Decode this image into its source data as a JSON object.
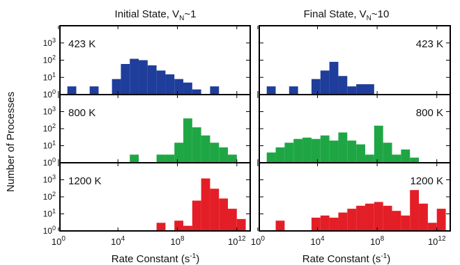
{
  "chart_data": {
    "type": "bar",
    "panel_type": "histogram",
    "x_scale": "log10",
    "y_scale": "log10",
    "xlim": [
      0.1,
      12.9
    ],
    "ylim": [
      1,
      10000
    ],
    "x_tick_exponents": [
      0,
      4,
      8,
      12
    ],
    "y_tick_exponents": [
      0,
      1,
      2,
      3
    ],
    "bin_width_decades": 0.6,
    "ylabel": "Number of Processes",
    "columns": [
      {
        "title_prefix": "Initial State, V",
        "title_sub": "N",
        "title_suffix": "~1",
        "xlabel": "Rate Constant (s",
        "xlabel_sup": "-1",
        "xlabel_end": ")"
      },
      {
        "title_prefix": "Final State, V",
        "title_sub": "N",
        "title_suffix": "~10",
        "xlabel": "Rate Constant (s",
        "xlabel_sup": "-1",
        "xlabel_end": ")"
      }
    ],
    "panels": [
      {
        "temperature": "423 K",
        "column": 0,
        "row": 0,
        "color": "#1f3d9a",
        "label_pos": "left",
        "bins": [
          [
            0.6,
            3
          ],
          [
            2.1,
            3
          ],
          [
            3.6,
            8
          ],
          [
            4.2,
            60
          ],
          [
            4.8,
            120
          ],
          [
            5.4,
            100
          ],
          [
            6.0,
            50
          ],
          [
            6.6,
            25
          ],
          [
            7.2,
            15
          ],
          [
            7.8,
            8
          ],
          [
            8.4,
            5
          ],
          [
            9.0,
            2
          ],
          [
            10.2,
            3
          ]
        ]
      },
      {
        "temperature": "423 K",
        "column": 1,
        "row": 0,
        "color": "#1f3d9a",
        "label_pos": "right",
        "bins": [
          [
            0.6,
            3
          ],
          [
            2.1,
            3
          ],
          [
            3.6,
            8
          ],
          [
            4.2,
            25
          ],
          [
            4.8,
            80
          ],
          [
            5.4,
            12
          ],
          [
            6.0,
            3
          ],
          [
            6.6,
            4
          ],
          [
            7.2,
            4
          ]
        ]
      },
      {
        "temperature": "800 K",
        "column": 0,
        "row": 1,
        "color": "#1fa644",
        "label_pos": "left",
        "bins": [
          [
            4.8,
            3
          ],
          [
            6.6,
            3
          ],
          [
            7.2,
            3
          ],
          [
            7.8,
            15
          ],
          [
            8.4,
            400
          ],
          [
            9.0,
            120
          ],
          [
            9.6,
            40
          ],
          [
            10.2,
            15
          ],
          [
            10.8,
            8
          ],
          [
            11.4,
            3
          ]
        ]
      },
      {
        "temperature": "800 K",
        "column": 1,
        "row": 1,
        "color": "#1fa644",
        "label_pos": "right",
        "bins": [
          [
            0.6,
            4
          ],
          [
            1.2,
            8
          ],
          [
            1.8,
            15
          ],
          [
            2.4,
            25
          ],
          [
            3.0,
            30
          ],
          [
            3.6,
            25
          ],
          [
            4.2,
            40
          ],
          [
            4.8,
            20
          ],
          [
            5.4,
            60
          ],
          [
            6.0,
            20
          ],
          [
            6.6,
            12
          ],
          [
            7.2,
            3
          ],
          [
            7.8,
            150
          ],
          [
            8.4,
            15
          ],
          [
            9.0,
            3
          ],
          [
            9.6,
            6
          ],
          [
            10.2,
            2
          ]
        ]
      },
      {
        "temperature": "1200 K",
        "column": 0,
        "row": 2,
        "color": "#e41e26",
        "label_pos": "left",
        "bins": [
          [
            6.6,
            3
          ],
          [
            7.8,
            4
          ],
          [
            8.4,
            2
          ],
          [
            9.0,
            60
          ],
          [
            9.6,
            1200
          ],
          [
            10.2,
            300
          ],
          [
            10.8,
            80
          ],
          [
            11.4,
            20
          ],
          [
            12.0,
            5
          ]
        ]
      },
      {
        "temperature": "1200 K",
        "column": 1,
        "row": 2,
        "color": "#e41e26",
        "label_pos": "right",
        "bins": [
          [
            1.2,
            4
          ],
          [
            3.6,
            6
          ],
          [
            4.2,
            8
          ],
          [
            4.8,
            6
          ],
          [
            5.4,
            12
          ],
          [
            6.0,
            20
          ],
          [
            6.6,
            30
          ],
          [
            7.2,
            40
          ],
          [
            7.8,
            50
          ],
          [
            8.4,
            30
          ],
          [
            9.0,
            15
          ],
          [
            9.6,
            8
          ],
          [
            10.2,
            250
          ],
          [
            10.8,
            40
          ],
          [
            11.4,
            3
          ],
          [
            12.0,
            20
          ]
        ]
      }
    ]
  }
}
